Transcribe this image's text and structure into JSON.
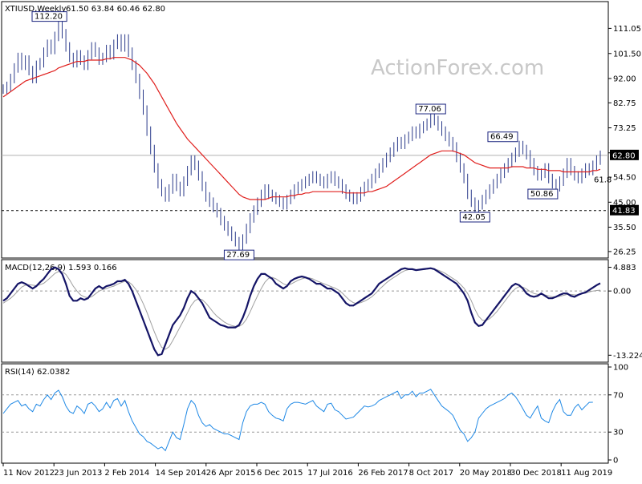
{
  "chart_data": [
    {
      "type": "line",
      "panel": "price",
      "title": "XTIUSD,Weekly",
      "ohlc_text": "61.50 63.84 60.46 62.80",
      "watermark": "ActionForex.com",
      "yticks": [
        "111.05",
        "101.50",
        "92.00",
        "82.75",
        "73.25",
        "63.75",
        "54.50",
        "45.00",
        "35.50",
        "26.25"
      ],
      "ylim": [
        25.0,
        120.0
      ],
      "xticks": [
        "11 Nov 2012",
        "23 Jun 2013",
        "2 Feb 2014",
        "14 Sep 2014",
        "26 Apr 2015",
        "6 Dec 2015",
        "17 Jul 2016",
        "26 Feb 2017",
        "8 Oct 2017",
        "20 May 2018",
        "30 Dec 2018",
        "11 Aug 2019"
      ],
      "current_price_label": "62.80",
      "current_price": 62.8,
      "support_label": "41.83",
      "support_value": 41.83,
      "fib_label": "61.8",
      "annotations": [
        {
          "label": "112.20",
          "value": 112.2
        },
        {
          "label": "27.69",
          "value": 27.69
        },
        {
          "label": "77.06",
          "value": 77.06
        },
        {
          "label": "66.49",
          "value": 66.49
        },
        {
          "label": "50.86",
          "value": 50.86
        },
        {
          "label": "42.05",
          "value": 42.05
        }
      ],
      "series": [
        {
          "key": "price",
          "values": [
            88,
            89,
            92,
            96,
            100,
            97,
            99,
            95,
            92,
            97,
            98,
            102,
            105,
            103,
            108,
            112.2,
            109,
            104,
            100,
            98,
            101,
            99,
            97,
            101,
            104,
            102,
            99,
            100,
            103,
            101,
            105,
            107,
            104,
            107,
            102,
            97,
            92,
            86,
            80,
            72,
            65,
            58,
            52,
            49,
            47,
            50,
            54,
            51,
            49,
            53,
            57,
            61,
            59,
            55,
            51,
            47,
            45,
            43,
            41,
            38,
            36,
            34,
            32,
            30,
            27.69,
            31,
            35,
            39,
            42,
            45,
            48,
            50,
            48,
            47,
            46,
            45,
            44,
            46,
            48,
            50,
            51,
            52,
            53,
            54,
            55,
            54,
            53,
            52,
            54,
            55,
            53,
            52,
            50,
            48,
            47,
            46,
            47,
            49,
            51,
            52,
            54,
            56,
            58,
            60,
            62,
            64,
            66,
            68,
            67,
            69,
            70,
            72,
            71,
            73,
            74,
            75,
            77.06,
            76,
            74,
            72,
            70,
            68,
            66,
            62,
            58,
            54,
            48,
            45,
            42.05,
            44,
            46,
            48,
            50,
            52,
            54,
            56,
            58,
            60,
            62,
            64,
            66.49,
            65,
            63,
            60,
            57,
            55,
            56,
            58,
            54,
            52,
            50.86,
            53,
            56,
            60,
            57,
            55,
            54,
            56,
            58,
            57,
            59,
            61,
            62.8
          ]
        },
        {
          "key": "sma",
          "values": [
            85,
            86,
            87,
            88,
            89,
            90,
            91,
            91.5,
            92,
            92.5,
            93,
            93.5,
            94,
            94.5,
            95,
            96,
            96.5,
            97,
            97.5,
            98,
            98.5,
            98.5,
            98.5,
            99,
            99,
            99,
            99,
            99,
            99.5,
            99.5,
            100,
            100,
            100,
            100,
            99.5,
            99,
            98,
            97,
            95.5,
            94,
            92,
            90,
            87.5,
            85,
            82.5,
            80,
            77.5,
            75,
            73,
            71,
            69,
            67.5,
            66,
            64.5,
            63,
            61.5,
            60,
            58.5,
            57,
            55.5,
            54,
            52.5,
            51,
            49.5,
            48,
            47,
            46.5,
            46,
            46,
            46,
            46,
            46,
            46.5,
            47,
            47,
            47,
            47,
            47,
            47.5,
            47.5,
            48,
            48,
            48.5,
            48.5,
            49,
            49,
            49,
            49,
            49,
            49,
            49,
            49,
            49,
            48.5,
            48.5,
            48.5,
            48.5,
            48.5,
            48.5,
            49,
            49,
            49.5,
            50,
            50.5,
            51,
            52,
            53,
            54,
            55,
            56,
            57,
            58,
            59,
            60,
            61,
            62,
            63,
            63.5,
            64,
            64.5,
            64.5,
            64.5,
            64.5,
            64,
            63.5,
            63,
            62,
            61,
            60,
            59.5,
            59,
            58.5,
            58,
            58,
            58,
            58,
            58,
            58,
            58.5,
            58.5,
            58.5,
            58.5,
            58,
            58,
            58,
            57.5,
            57.5,
            57.5,
            57,
            57,
            57,
            57,
            56.5,
            56.5,
            56.5,
            56.5,
            56.5,
            56.5,
            56.5,
            56.5,
            57,
            57,
            57.5
          ]
        }
      ]
    },
    {
      "type": "line",
      "panel": "macd",
      "title": "MACD(12,26,9) 1.593 0.166",
      "yticks": [
        "4.883",
        "0.00",
        "-13.224"
      ],
      "ylim": [
        -14.0,
        5.8
      ],
      "zero_line": 0,
      "series": [
        {
          "key": "macd",
          "values": [
            -2,
            -1.5,
            -0.5,
            0.5,
            1.5,
            1.8,
            1.5,
            1,
            0.5,
            1,
            1.8,
            2.5,
            3.5,
            4.5,
            4.883,
            4.5,
            3.5,
            1.5,
            -1,
            -2,
            -2,
            -1.5,
            -1.8,
            -1.5,
            -0.5,
            0.5,
            1,
            0.5,
            1,
            1.2,
            1.5,
            2,
            2,
            2.3,
            1.5,
            0,
            -2,
            -4,
            -6,
            -8,
            -10,
            -12,
            -13.224,
            -13,
            -11,
            -9,
            -7,
            -6,
            -5,
            -3.5,
            -1.5,
            0,
            -0.5,
            -1.5,
            -2.5,
            -4,
            -5.5,
            -6,
            -6.5,
            -7,
            -7.2,
            -7.5,
            -7.5,
            -7.5,
            -7,
            -5.5,
            -3.5,
            -1,
            1,
            2.5,
            3.5,
            3.5,
            3,
            2.5,
            1.5,
            1,
            0.5,
            1,
            2,
            2.5,
            2.8,
            3,
            2.8,
            2.5,
            2,
            1.5,
            1.5,
            1,
            0.5,
            0.5,
            0,
            -0.5,
            -1.5,
            -2.5,
            -3,
            -3,
            -2.5,
            -2,
            -1.5,
            -1,
            -0.5,
            0.5,
            1.5,
            2,
            2.5,
            3,
            3.5,
            4,
            4.5,
            4.7,
            4.5,
            4.5,
            4.3,
            4.4,
            4.5,
            4.6,
            4.7,
            4.5,
            4,
            3.5,
            3,
            2.5,
            2,
            1.5,
            0.5,
            -0.5,
            -2,
            -4.5,
            -6.5,
            -7.2,
            -7,
            -6,
            -5,
            -4,
            -3,
            -2,
            -1,
            0,
            1,
            1.5,
            1.2,
            0.5,
            -0.5,
            -1,
            -1.2,
            -1,
            -0.5,
            -1,
            -1.5,
            -1.5,
            -1.2,
            -0.8,
            -0.5,
            -0.5,
            -1,
            -1.2,
            -0.8,
            -0.5,
            -0.3,
            0.2,
            0.7,
            1.2,
            1.593
          ]
        },
        {
          "key": "signal",
          "values": [
            -2.5,
            -2,
            -1.5,
            -0.8,
            0,
            0.8,
            1.2,
            1.3,
            1.2,
            1.1,
            1.3,
            1.6,
            2.2,
            2.9,
            3.6,
            4,
            4,
            3.4,
            2.3,
            1,
            0,
            -0.8,
            -1.2,
            -1.4,
            -1.2,
            -0.6,
            0,
            0.3,
            0.5,
            0.8,
            1,
            1.4,
            1.7,
            2,
            1.9,
            1.3,
            0.3,
            -1,
            -2.6,
            -4.4,
            -6.4,
            -8.4,
            -10.2,
            -11.6,
            -12,
            -11.5,
            -10.2,
            -8.8,
            -7.4,
            -6,
            -4.5,
            -3,
            -2,
            -1.6,
            -1.8,
            -2.5,
            -3.4,
            -4.4,
            -5.2,
            -5.8,
            -6.4,
            -6.8,
            -7.1,
            -7.3,
            -7.3,
            -6.8,
            -5.8,
            -4.3,
            -2.6,
            -1,
            0.5,
            1.8,
            2.6,
            2.8,
            2.5,
            2,
            1.5,
            1.2,
            1.4,
            1.8,
            2.2,
            2.5,
            2.7,
            2.7,
            2.5,
            2.1,
            1.8,
            1.5,
            1.2,
            0.9,
            0.6,
            0.2,
            -0.4,
            -1.2,
            -1.9,
            -2.4,
            -2.6,
            -2.4,
            -2.1,
            -1.7,
            -1.2,
            -0.5,
            0.3,
            1,
            1.7,
            2.3,
            2.8,
            3.3,
            3.8,
            4.2,
            4.4,
            4.4,
            4.4,
            4.4,
            4.4,
            4.5,
            4.6,
            4.5,
            4.3,
            4,
            3.6,
            3.1,
            2.6,
            2.1,
            1.4,
            0.6,
            -0.5,
            -2,
            -3.8,
            -5.2,
            -6,
            -6.1,
            -5.7,
            -5,
            -4.2,
            -3.2,
            -2.2,
            -1.2,
            -0.2,
            0.5,
            0.9,
            0.8,
            0.4,
            -0.1,
            -0.5,
            -0.7,
            -0.7,
            -0.8,
            -1,
            -1.2,
            -1.2,
            -1.1,
            -0.9,
            -0.7,
            -0.7,
            -0.8,
            -0.8,
            -0.6,
            -0.4,
            -0.2,
            0,
            0.1,
            0.166
          ]
        }
      ]
    },
    {
      "type": "line",
      "panel": "rsi",
      "title": "RSI(14) 62.0382",
      "yticks": [
        "100",
        "70",
        "30",
        "0"
      ],
      "ylim": [
        0,
        100
      ],
      "reference_lines": [
        70,
        30
      ],
      "series": [
        {
          "key": "rsi",
          "values": [
            50,
            55,
            60,
            62,
            64,
            58,
            60,
            55,
            52,
            60,
            58,
            65,
            70,
            65,
            72,
            75,
            68,
            58,
            52,
            50,
            58,
            55,
            50,
            60,
            62,
            58,
            52,
            55,
            62,
            56,
            64,
            66,
            58,
            64,
            52,
            42,
            35,
            28,
            25,
            20,
            18,
            15,
            12,
            14,
            10,
            20,
            30,
            24,
            22,
            38,
            55,
            64,
            60,
            48,
            40,
            36,
            38,
            34,
            32,
            30,
            28,
            28,
            26,
            24,
            22,
            40,
            52,
            58,
            60,
            60,
            62,
            60,
            52,
            48,
            45,
            44,
            42,
            55,
            60,
            62,
            62,
            61,
            60,
            62,
            64,
            58,
            55,
            52,
            60,
            61,
            54,
            52,
            48,
            44,
            45,
            46,
            50,
            54,
            58,
            57,
            58,
            60,
            64,
            66,
            68,
            70,
            72,
            74,
            66,
            70,
            70,
            74,
            68,
            72,
            72,
            74,
            76,
            70,
            64,
            58,
            55,
            52,
            48,
            40,
            32,
            28,
            20,
            24,
            30,
            45,
            50,
            55,
            58,
            60,
            62,
            64,
            66,
            70,
            72,
            68,
            62,
            55,
            48,
            45,
            52,
            58,
            45,
            42,
            40,
            52,
            60,
            65,
            52,
            48,
            48,
            56,
            60,
            54,
            58,
            62,
            62.0382
          ]
        }
      ]
    }
  ]
}
